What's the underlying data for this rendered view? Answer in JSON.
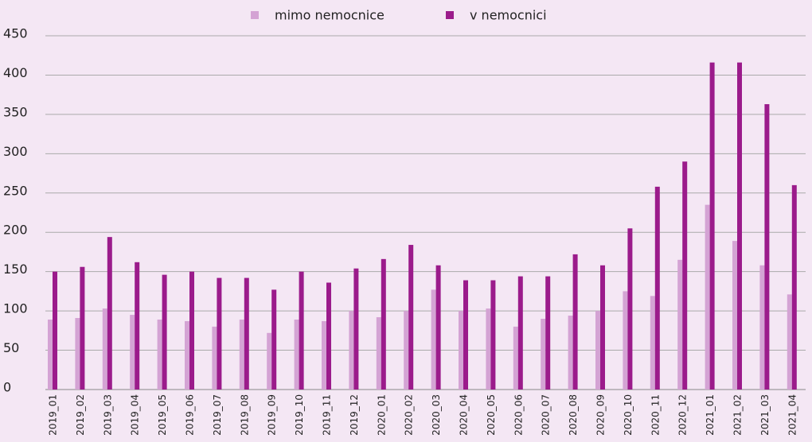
{
  "chart_data": {
    "type": "bar",
    "categories": [
      "2019_01",
      "2019_02",
      "2019_03",
      "2019_04",
      "2019_05",
      "2019_06",
      "2019_07",
      "2019_08",
      "2019_09",
      "2019_10",
      "2019_11",
      "2019_12",
      "2020_01",
      "2020_02",
      "2020_03",
      "2020_04",
      "2020_05",
      "2020_06",
      "2020_07",
      "2020_08",
      "2020_09",
      "2020_10",
      "2020_11",
      "2020_12",
      "2021_01",
      "2021_02",
      "2021_03",
      "2021_04"
    ],
    "series": [
      {
        "name": "mimo nemocnice",
        "color": "#d4a3d4",
        "values": [
          89,
          91,
          103,
          95,
          89,
          87,
          80,
          89,
          72,
          89,
          87,
          100,
          92,
          100,
          127,
          100,
          103,
          80,
          90,
          94,
          100,
          125,
          119,
          165,
          235,
          189,
          158,
          121
        ]
      },
      {
        "name": "v nemocnici",
        "color": "#9b1b8b",
        "values": [
          150,
          156,
          194,
          162,
          146,
          150,
          142,
          142,
          127,
          150,
          136,
          154,
          166,
          184,
          158,
          139,
          139,
          144,
          144,
          172,
          158,
          205,
          258,
          290,
          416,
          416,
          363,
          260
        ]
      }
    ],
    "ylim": [
      0,
      450
    ],
    "yticks": [
      0,
      50,
      100,
      150,
      200,
      250,
      300,
      350,
      400,
      450
    ],
    "grid": true,
    "legend": "top"
  }
}
